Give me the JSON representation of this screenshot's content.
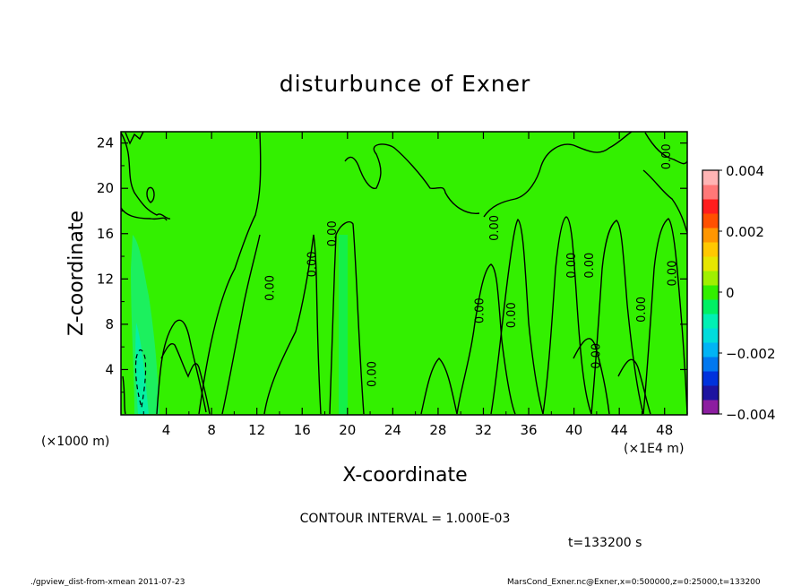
{
  "chart_data": {
    "type": "heatmap",
    "title": "disturbunce of Exner",
    "xlabel": "X-coordinate",
    "ylabel": "Z-coordinate",
    "x_unit": "(×1000 m)",
    "x_unit2": "(×1E4 m)",
    "xlim": [
      0,
      50
    ],
    "ylim": [
      0,
      25
    ],
    "x_ticks": [
      "4",
      "8",
      "12",
      "16",
      "20",
      "24",
      "28",
      "32",
      "36",
      "40",
      "44",
      "48"
    ],
    "x_tick_values": [
      4,
      8,
      12,
      16,
      20,
      24,
      28,
      32,
      36,
      40,
      44,
      48
    ],
    "y_ticks": [
      "4",
      "8",
      "12",
      "16",
      "20",
      "24"
    ],
    "y_tick_values": [
      4,
      8,
      12,
      16,
      20,
      24
    ],
    "colorbar": {
      "range": [
        -0.004,
        0.004
      ],
      "tick_labels": [
        "0.004",
        "0.002",
        "0",
        "−0.002",
        "−0.004"
      ],
      "tick_values": [
        0.004,
        0.002,
        0,
        -0.002,
        -0.004
      ],
      "colors": [
        "#8c1ea0",
        "#1e14a0",
        "#0032dc",
        "#0078f0",
        "#00b4f5",
        "#00dcdc",
        "#00f0b4",
        "#00f064",
        "#32f000",
        "#a0f000",
        "#e6e600",
        "#ffc800",
        "#ff9600",
        "#ff5000",
        "#ff1e1e",
        "#ff7878",
        "#ffb4b4"
      ]
    },
    "background_value": 0,
    "field_color": "#33f000",
    "contour_labels": [
      {
        "text": "0.00",
        "x": 22.5,
        "y": 3.6
      },
      {
        "text": "0.00",
        "x": 13.5,
        "y": 11.2
      },
      {
        "text": "0.00",
        "x": 17.2,
        "y": 13.3
      },
      {
        "text": "0.00",
        "x": 19.0,
        "y": 16.0
      },
      {
        "text": "0.00",
        "x": 32.0,
        "y": 9.2
      },
      {
        "text": "0.00",
        "x": 34.8,
        "y": 8.8
      },
      {
        "text": "0.00",
        "x": 33.3,
        "y": 16.5
      },
      {
        "text": "0.00",
        "x": 40.1,
        "y": 13.2
      },
      {
        "text": "0.00",
        "x": 41.7,
        "y": 13.2
      },
      {
        "text": "0.00",
        "x": 46.3,
        "y": 9.3
      },
      {
        "text": "0.00",
        "x": 49.0,
        "y": 12.5
      },
      {
        "text": "0.00",
        "x": 42.3,
        "y": 5.2
      },
      {
        "text": "0.00",
        "x": 48.5,
        "y": 22.8
      }
    ]
  },
  "annotations": {
    "contour_interval": "CONTOUR INTERVAL = 1.000E-03",
    "time": "t=133200 s",
    "footer_left": "./gpview_dist-from-xmean   2011-07-23",
    "footer_right": "MarsCond_Exner.nc@Exner,x=0:500000,z=0:25000,t=133200"
  }
}
